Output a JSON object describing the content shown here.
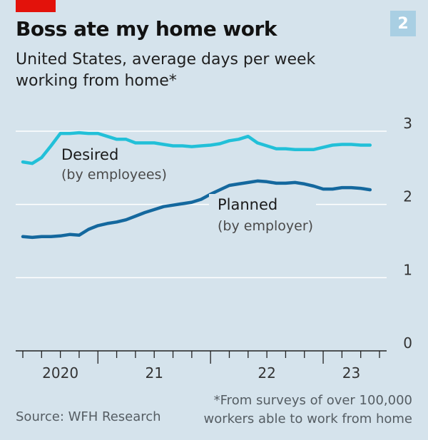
{
  "header": {
    "badge": "2",
    "title": "Boss ate my home work",
    "subtitle": "United States, average days per week working from home*"
  },
  "footer": {
    "source": "Source: WFH Research",
    "note": "*From surveys of over 100,000 workers able to work from home"
  },
  "colors": {
    "background": "#d5e3ec",
    "desired": "#22c0d8",
    "planned": "#14689e",
    "accent": "#e3120b"
  },
  "chart_data": {
    "type": "line",
    "title": "Boss ate my home work",
    "subtitle": "United States, average days per week working from home*",
    "ylim": [
      0,
      3
    ],
    "yticks": [
      "0",
      "1",
      "2",
      "3"
    ],
    "xlim": [
      "2020-05",
      "2023-07"
    ],
    "x_tick_labels": [
      "2020",
      "21",
      "22",
      "23"
    ],
    "grid": true,
    "x": [
      "2020-05",
      "2020-06",
      "2020-07",
      "2020-08",
      "2020-09",
      "2020-10",
      "2020-11",
      "2020-12",
      "2021-01",
      "2021-02",
      "2021-03",
      "2021-04",
      "2021-05",
      "2021-06",
      "2021-07",
      "2021-08",
      "2021-09",
      "2021-10",
      "2021-11",
      "2021-12",
      "2022-01",
      "2022-02",
      "2022-03",
      "2022-04",
      "2022-05",
      "2022-06",
      "2022-07",
      "2022-08",
      "2022-09",
      "2022-10",
      "2022-11",
      "2022-12",
      "2023-01",
      "2023-02",
      "2023-03",
      "2023-04",
      "2023-05",
      "2023-06"
    ],
    "series": [
      {
        "name": "Desired",
        "sublabel": "(by employees)",
        "values": [
          2.58,
          2.56,
          2.64,
          2.8,
          2.97,
          2.97,
          2.98,
          2.97,
          2.97,
          2.93,
          2.89,
          2.89,
          2.84,
          2.84,
          2.84,
          2.82,
          2.8,
          2.8,
          2.79,
          2.8,
          2.81,
          2.83,
          2.87,
          2.89,
          2.93,
          2.84,
          2.8,
          2.76,
          2.76,
          2.75,
          2.75,
          2.75,
          2.78,
          2.81,
          2.82,
          2.82,
          2.81,
          2.81
        ]
      },
      {
        "name": "Planned",
        "sublabel": "(by employer)",
        "values": [
          1.56,
          1.55,
          1.56,
          1.56,
          1.57,
          1.59,
          1.58,
          1.66,
          1.71,
          1.74,
          1.76,
          1.79,
          1.84,
          1.89,
          1.93,
          1.97,
          1.99,
          2.01,
          2.03,
          2.07,
          2.14,
          2.2,
          2.26,
          2.28,
          2.3,
          2.32,
          2.31,
          2.29,
          2.29,
          2.3,
          2.28,
          2.25,
          2.21,
          2.21,
          2.23,
          2.23,
          2.22,
          2.2
        ]
      }
    ]
  }
}
